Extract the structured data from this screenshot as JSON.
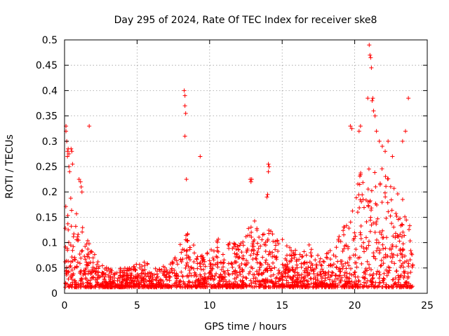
{
  "chart_data": {
    "type": "scatter",
    "title": "Day 295 of 2024, Rate Of TEC Index for receiver ske8",
    "xlabel": "GPS time / hours",
    "ylabel": "ROTI / TECUs",
    "xlim": [
      0,
      25
    ],
    "ylim": [
      0,
      0.5
    ],
    "xticks": [
      0,
      5,
      10,
      15,
      20,
      25
    ],
    "xtick_labels": [
      "0",
      "5",
      "10",
      "15",
      "20",
      "25"
    ],
    "yticks": [
      0,
      0.05,
      0.1,
      0.15,
      0.2,
      0.25,
      0.3,
      0.35,
      0.4,
      0.45,
      0.5
    ],
    "ytick_labels": [
      "0",
      "0.05",
      "0.1",
      "0.15",
      "0.2",
      "0.25",
      "0.3",
      "0.35",
      "0.4",
      "0.45",
      "0.5"
    ],
    "grid": true,
    "marker": "+",
    "series": [
      {
        "name": "ROTI",
        "color": "#ff0000",
        "envelope": [
          [
            0,
            0.2
          ],
          [
            0.5,
            0.2
          ],
          [
            1,
            0.15
          ],
          [
            1.5,
            0.12
          ],
          [
            2,
            0.08
          ],
          [
            2.5,
            0.06
          ],
          [
            3,
            0.05
          ],
          [
            3.5,
            0.05
          ],
          [
            4,
            0.05
          ],
          [
            4.5,
            0.05
          ],
          [
            5,
            0.06
          ],
          [
            5.5,
            0.07
          ],
          [
            6,
            0.05
          ],
          [
            6.5,
            0.05
          ],
          [
            7,
            0.06
          ],
          [
            7.5,
            0.07
          ],
          [
            8,
            0.1
          ],
          [
            8.5,
            0.12
          ],
          [
            9,
            0.09
          ],
          [
            9.5,
            0.08
          ],
          [
            10,
            0.1
          ],
          [
            10.5,
            0.11
          ],
          [
            11,
            0.1
          ],
          [
            11.5,
            0.1
          ],
          [
            12,
            0.1
          ],
          [
            12.5,
            0.12
          ],
          [
            13,
            0.15
          ],
          [
            13.5,
            0.12
          ],
          [
            14,
            0.14
          ],
          [
            14.5,
            0.12
          ],
          [
            15,
            0.11
          ],
          [
            15.5,
            0.1
          ],
          [
            16,
            0.1
          ],
          [
            16.5,
            0.09
          ],
          [
            17,
            0.1
          ],
          [
            17.5,
            0.08
          ],
          [
            18,
            0.08
          ],
          [
            18.5,
            0.09
          ],
          [
            19,
            0.12
          ],
          [
            19.5,
            0.15
          ],
          [
            20,
            0.2
          ],
          [
            20.5,
            0.25
          ],
          [
            21,
            0.25
          ],
          [
            21.5,
            0.27
          ],
          [
            22,
            0.25
          ],
          [
            22.5,
            0.25
          ],
          [
            23,
            0.2
          ],
          [
            23.5,
            0.18
          ],
          [
            24,
            0.1
          ]
        ],
        "points": [
          [
            0.1,
            0.33
          ],
          [
            0.1,
            0.32
          ],
          [
            0.15,
            0.3
          ],
          [
            0.2,
            0.28
          ],
          [
            0.2,
            0.27
          ],
          [
            0.25,
            0.285
          ],
          [
            0.3,
            0.275
          ],
          [
            0.3,
            0.25
          ],
          [
            0.35,
            0.24
          ],
          [
            0.45,
            0.285
          ],
          [
            0.5,
            0.28
          ],
          [
            0.55,
            0.255
          ],
          [
            1.0,
            0.225
          ],
          [
            1.1,
            0.22
          ],
          [
            1.15,
            0.21
          ],
          [
            1.2,
            0.2
          ],
          [
            1.7,
            0.33
          ],
          [
            8.25,
            0.4
          ],
          [
            8.3,
            0.39
          ],
          [
            8.3,
            0.37
          ],
          [
            8.35,
            0.355
          ],
          [
            8.3,
            0.31
          ],
          [
            8.4,
            0.225
          ],
          [
            9.35,
            0.27
          ],
          [
            12.8,
            0.225
          ],
          [
            12.85,
            0.22
          ],
          [
            12.9,
            0.225
          ],
          [
            13.95,
            0.19
          ],
          [
            14.0,
            0.195
          ],
          [
            14.05,
            0.255
          ],
          [
            14.1,
            0.25
          ],
          [
            14.05,
            0.24
          ],
          [
            19.7,
            0.33
          ],
          [
            19.8,
            0.325
          ],
          [
            20.3,
            0.32
          ],
          [
            20.4,
            0.33
          ],
          [
            20.9,
            0.385
          ],
          [
            21.0,
            0.49
          ],
          [
            21.05,
            0.47
          ],
          [
            21.1,
            0.465
          ],
          [
            21.15,
            0.445
          ],
          [
            21.2,
            0.38
          ],
          [
            21.25,
            0.385
          ],
          [
            21.3,
            0.36
          ],
          [
            21.4,
            0.35
          ],
          [
            21.5,
            0.32
          ],
          [
            21.7,
            0.3
          ],
          [
            21.9,
            0.29
          ],
          [
            22.1,
            0.28
          ],
          [
            22.3,
            0.3
          ],
          [
            22.6,
            0.27
          ],
          [
            23.3,
            0.3
          ],
          [
            23.5,
            0.32
          ],
          [
            23.7,
            0.385
          ]
        ]
      }
    ]
  }
}
